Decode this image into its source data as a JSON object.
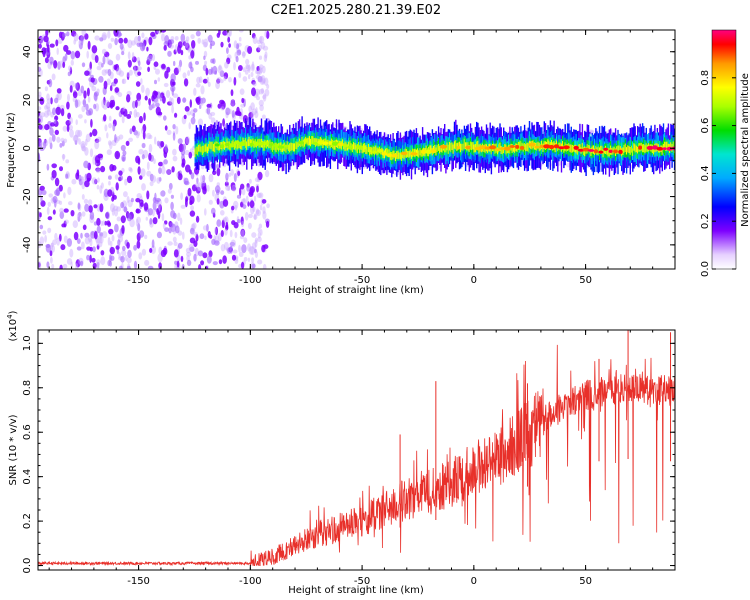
{
  "title": "C2E1.2025.280.21.39.E02",
  "chart_data": [
    {
      "type": "heatmap",
      "xlabel": "Height of straight line (km)",
      "ylabel": "Frequency (Hz)",
      "xlim": [
        -195,
        90
      ],
      "ylim": [
        -50,
        49
      ],
      "x_ticks": [
        -150,
        -100,
        -50,
        0,
        50
      ],
      "x_tick_labels": [
        "-150",
        "-100",
        "-50",
        "0",
        "50"
      ],
      "y_ticks": [
        -40,
        -20,
        0,
        20,
        40
      ],
      "y_tick_labels": [
        "-40",
        "-20",
        "0",
        "20",
        "40"
      ],
      "noise_region_x": [
        -195,
        -95
      ],
      "signal_start_x": -125,
      "signal_trace": {
        "x": [
          -125,
          -115,
          -105,
          -95,
          -85,
          -75,
          -65,
          -55,
          -45,
          -35,
          -25,
          -15,
          -5,
          5,
          15,
          25,
          35,
          45,
          55,
          65,
          75,
          90
        ],
        "y": [
          -1,
          1,
          2,
          2,
          0,
          3,
          2,
          1,
          -1,
          -3,
          -2,
          0,
          1,
          0,
          0,
          1,
          1,
          0,
          -1,
          -1,
          0,
          0
        ]
      },
      "colorbar": {
        "label": "Normalized spectral amplitude",
        "range": [
          0,
          1
        ],
        "ticks": [
          0.0,
          0.2,
          0.4,
          0.6,
          0.8
        ],
        "tick_labels": [
          "0.0",
          "0.2",
          "0.4",
          "0.6",
          "0.8"
        ]
      }
    },
    {
      "type": "line",
      "xlabel": "Height of straight line (km)",
      "ylabel": "SNR (10 * v/v)",
      "multiplier_label": "(x10",
      "multiplier_exponent": "4",
      "multiplier_close": ")",
      "xlim": [
        -195,
        90
      ],
      "ylim": [
        -0.02,
        1.06
      ],
      "x_ticks": [
        -150,
        -100,
        -50,
        0,
        50
      ],
      "x_tick_labels": [
        "-150",
        "-100",
        "-50",
        "0",
        "50"
      ],
      "y_ticks": [
        0.0,
        0.2,
        0.4,
        0.6,
        0.8,
        1.0
      ],
      "y_tick_labels": [
        "0.0",
        "0.2",
        "0.4",
        "0.6",
        "0.8",
        "1.0"
      ],
      "color": "#e8302a",
      "envelope": {
        "x": [
          -195,
          -100,
          -90,
          -80,
          -70,
          -60,
          -50,
          -40,
          -30,
          -20,
          -10,
          0,
          10,
          20,
          30,
          40,
          50,
          60,
          70,
          80,
          90
        ],
        "y": [
          0.01,
          0.01,
          0.04,
          0.09,
          0.14,
          0.17,
          0.2,
          0.25,
          0.3,
          0.33,
          0.37,
          0.44,
          0.48,
          0.56,
          0.64,
          0.72,
          0.77,
          0.79,
          0.8,
          0.79,
          0.78
        ]
      },
      "spikes": [
        {
          "x": -33,
          "y": 0.59
        },
        {
          "x": -17,
          "y": 0.83
        },
        {
          "x": 24,
          "y": 0.82
        },
        {
          "x": 56,
          "y": 0.93
        },
        {
          "x": 69,
          "y": 1.06
        },
        {
          "x": 88,
          "y": 1.05
        }
      ]
    }
  ]
}
